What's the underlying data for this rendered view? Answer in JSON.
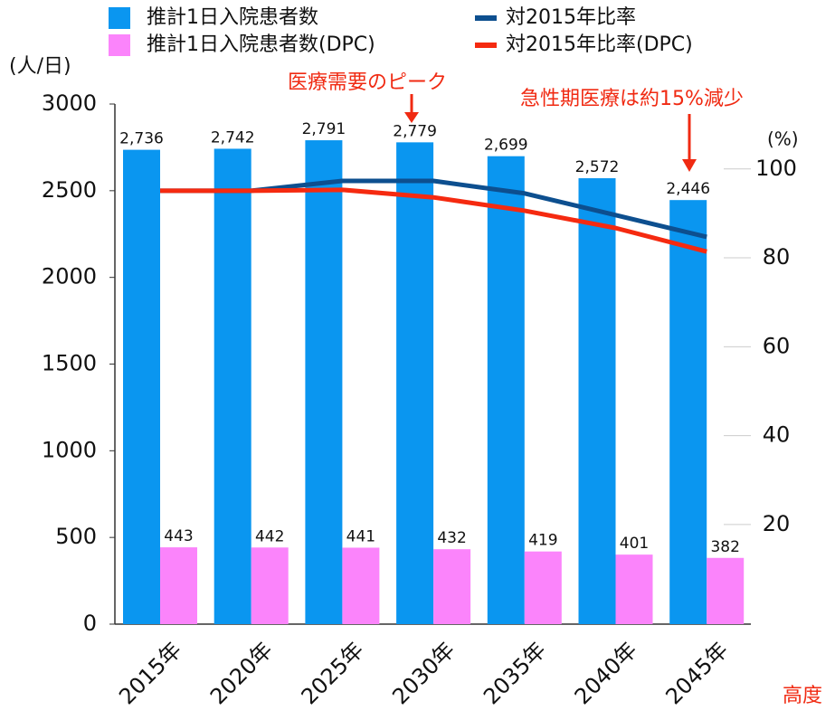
{
  "chart_data": {
    "type": "bar",
    "categories": [
      "2015年",
      "2020年",
      "2025年",
      "2030年",
      "2035年",
      "2040年",
      "2045年"
    ],
    "series": [
      {
        "name": "推計1日入院患者数",
        "color": "#0a96f0",
        "values": [
          2736,
          2742,
          2791,
          2779,
          2699,
          2572,
          2446
        ],
        "value_labels": [
          "2,736",
          "2,742",
          "2,791",
          "2,779",
          "2,699",
          "2,572",
          "2,446"
        ]
      },
      {
        "name": "推計1日入院患者数(DPC)",
        "color": "#fb84fb",
        "values": [
          443,
          442,
          441,
          432,
          419,
          401,
          382
        ]
      },
      {
        "name": "対2015年比率",
        "color": "#0d4f8f",
        "type": "line",
        "axis": "y2",
        "values": [
          95.1,
          95.1,
          97.3,
          97.3,
          94.5,
          89.6,
          84.7
        ]
      },
      {
        "name": "対2015年比率(DPC)",
        "color": "#f52a10",
        "type": "line",
        "axis": "y2",
        "values": [
          95.1,
          95.1,
          95.3,
          93.6,
          90.6,
          86.7,
          81.4
        ]
      }
    ],
    "ylabel": "(人/日)",
    "y2label": "(%)",
    "ylim": [
      0,
      3000
    ],
    "yticks": [
      0,
      500,
      1000,
      1500,
      2000,
      2500,
      3000
    ],
    "y2lim": [
      -2.4,
      114.6
    ],
    "y2ticks": [
      20,
      40,
      60,
      80,
      100
    ],
    "annotations": [
      "医療需要のピーク",
      "急性期医療は約15%減少",
      "高度"
    ]
  }
}
